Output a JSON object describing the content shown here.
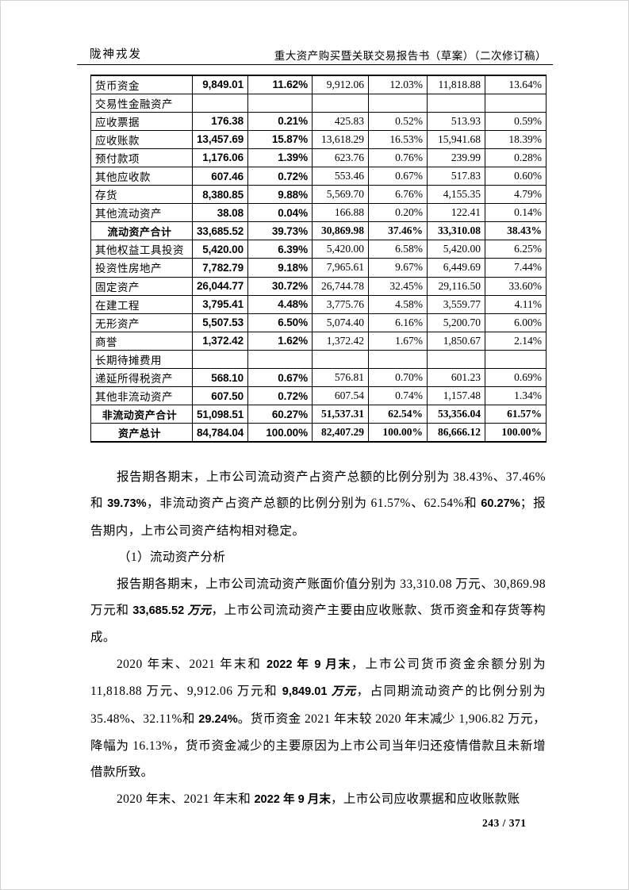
{
  "colors": {
    "ink": "#000000",
    "paper": "#ffffff"
  },
  "header": {
    "company": "陇神戎发",
    "document_title": "重大资产购买暨关联交易报告书（草案）（二次修订稿）"
  },
  "table": {
    "rows": [
      {
        "total": false,
        "cells": [
          "货币资金",
          "9,849.01",
          "11.62%",
          "9,912.06",
          "12.03%",
          "11,818.88",
          "13.64%"
        ]
      },
      {
        "total": false,
        "cells": [
          "交易性金融资产",
          "",
          "",
          "",
          "",
          "",
          ""
        ]
      },
      {
        "total": false,
        "cells": [
          "应收票据",
          "176.38",
          "0.21%",
          "425.83",
          "0.52%",
          "513.93",
          "0.59%"
        ]
      },
      {
        "total": false,
        "cells": [
          "应收账款",
          "13,457.69",
          "15.87%",
          "13,618.29",
          "16.53%",
          "15,941.68",
          "18.39%"
        ]
      },
      {
        "total": false,
        "cells": [
          "预付款项",
          "1,176.06",
          "1.39%",
          "623.76",
          "0.76%",
          "239.99",
          "0.28%"
        ]
      },
      {
        "total": false,
        "cells": [
          "其他应收款",
          "607.46",
          "0.72%",
          "553.46",
          "0.67%",
          "517.83",
          "0.60%"
        ]
      },
      {
        "total": false,
        "cells": [
          "存货",
          "8,380.85",
          "9.88%",
          "5,569.70",
          "6.76%",
          "4,155.35",
          "4.79%"
        ]
      },
      {
        "total": false,
        "cells": [
          "其他流动资产",
          "38.08",
          "0.04%",
          "166.88",
          "0.20%",
          "122.41",
          "0.14%"
        ]
      },
      {
        "total": true,
        "cells": [
          "流动资产合计",
          "33,685.52",
          "39.73%",
          "30,869.98",
          "37.46%",
          "33,310.08",
          "38.43%"
        ]
      },
      {
        "total": false,
        "cells": [
          "其他权益工具投资",
          "5,420.00",
          "6.39%",
          "5,420.00",
          "6.58%",
          "5,420.00",
          "6.25%"
        ]
      },
      {
        "total": false,
        "cells": [
          "投资性房地产",
          "7,782.79",
          "9.18%",
          "7,965.61",
          "9.67%",
          "6,449.69",
          "7.44%"
        ]
      },
      {
        "total": false,
        "cells": [
          "固定资产",
          "26,044.77",
          "30.72%",
          "26,744.78",
          "32.45%",
          "29,116.50",
          "33.60%"
        ]
      },
      {
        "total": false,
        "cells": [
          "在建工程",
          "3,795.41",
          "4.48%",
          "3,775.76",
          "4.58%",
          "3,559.77",
          "4.11%"
        ]
      },
      {
        "total": false,
        "cells": [
          "无形资产",
          "5,507.53",
          "6.50%",
          "5,074.40",
          "6.16%",
          "5,200.70",
          "6.00%"
        ]
      },
      {
        "total": false,
        "cells": [
          "商誉",
          "1,372.42",
          "1.62%",
          "1,372.42",
          "1.67%",
          "1,850.67",
          "2.14%"
        ]
      },
      {
        "total": false,
        "cells": [
          "长期待摊费用",
          "",
          "",
          "",
          "",
          "",
          ""
        ]
      },
      {
        "total": false,
        "cells": [
          "递延所得税资产",
          "568.10",
          "0.67%",
          "576.81",
          "0.70%",
          "601.23",
          "0.69%"
        ]
      },
      {
        "total": false,
        "cells": [
          "其他非流动资产",
          "607.50",
          "0.72%",
          "607.54",
          "0.74%",
          "1,157.48",
          "1.34%"
        ]
      },
      {
        "total": true,
        "cells": [
          "非流动资产合计",
          "51,098.51",
          "60.27%",
          "51,537.31",
          "62.54%",
          "53,356.04",
          "61.57%"
        ]
      },
      {
        "total": true,
        "cells": [
          "资产总计",
          "84,784.04",
          "100.00%",
          "82,407.29",
          "100.00%",
          "86,666.12",
          "100.00%"
        ]
      }
    ]
  },
  "paragraphs": [
    {
      "name": "para-asset-structure",
      "heading": false,
      "segments": [
        {
          "text": "报告期各期末，上市公司流动资产占资产总额的比例分别为 38.43%、37.46%和 ",
          "bold": false,
          "italic": false
        },
        {
          "text": "39.73%",
          "bold": true,
          "italic": false
        },
        {
          "text": "，非流动资产占资产总额的比例分别为 61.57%、62.54%和 ",
          "bold": false,
          "italic": false
        },
        {
          "text": "60.27%",
          "bold": true,
          "italic": false
        },
        {
          "text": "；报告期内，上市公司资产结构相对稳定。",
          "bold": false,
          "italic": false
        }
      ]
    },
    {
      "name": "heading-current-assets-analysis",
      "heading": true,
      "segments": [
        {
          "text": "（1）流动资产分析",
          "bold": false,
          "italic": false
        }
      ]
    },
    {
      "name": "para-current-assets-value",
      "heading": false,
      "segments": [
        {
          "text": "报告期各期末，上市公司流动资产账面价值分别为 33,310.08 万元、30,869.98 万元和 ",
          "bold": false,
          "italic": false
        },
        {
          "text": "33,685.52 ",
          "bold": true,
          "italic": false
        },
        {
          "text": "万元",
          "bold": true,
          "italic": true
        },
        {
          "text": "，上市公司流动资产主要由应收账款、货币资金和存货等构成。",
          "bold": false,
          "italic": false
        }
      ]
    },
    {
      "name": "para-monetary-funds",
      "heading": false,
      "segments": [
        {
          "text": "2020 年末、2021 年末和 ",
          "bold": false,
          "italic": false
        },
        {
          "text": "2022 年 9 月末",
          "bold": true,
          "italic": false
        },
        {
          "text": "，上市公司货币资金余额分别为 11,818.88 万元、9,912.06 万元和 ",
          "bold": false,
          "italic": false
        },
        {
          "text": "9,849.01 ",
          "bold": true,
          "italic": false
        },
        {
          "text": "万元",
          "bold": true,
          "italic": true
        },
        {
          "text": "，占同期流动资产的比例分别为 35.48%、32.11%和 ",
          "bold": false,
          "italic": false
        },
        {
          "text": "29.24%",
          "bold": true,
          "italic": false
        },
        {
          "text": "。货币资金 2021 年末较 2020 年末减少 1,906.82 万元，降幅为 16.13%，货币资金减少的主要原因为上市公司当年归还疫情借款且未新增借款所致。",
          "bold": false,
          "italic": false
        }
      ]
    },
    {
      "name": "para-receivables",
      "heading": false,
      "segments": [
        {
          "text": "2020 年末、2021 年末和 ",
          "bold": false,
          "italic": false
        },
        {
          "text": "2022 年 9 月末",
          "bold": true,
          "italic": false
        },
        {
          "text": "，上市公司应收票据和应收账款账",
          "bold": false,
          "italic": false
        }
      ]
    }
  ],
  "footer": {
    "page_number": "243 / 371"
  }
}
